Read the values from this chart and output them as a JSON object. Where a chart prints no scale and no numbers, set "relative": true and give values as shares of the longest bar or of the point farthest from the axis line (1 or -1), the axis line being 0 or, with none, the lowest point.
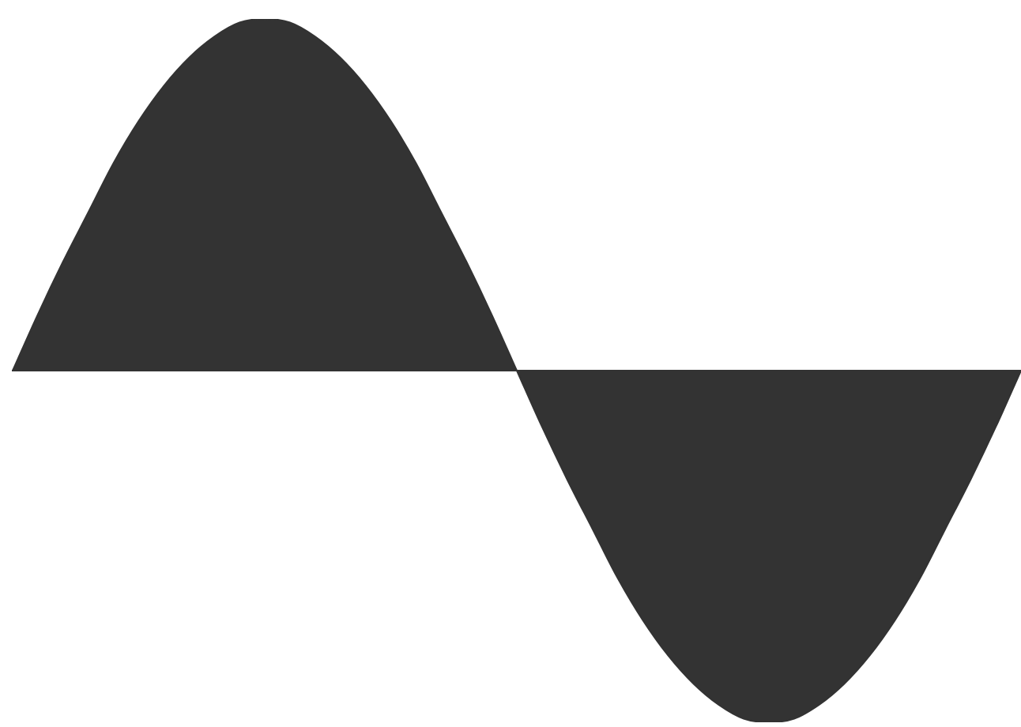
{
  "chart_data": {
    "type": "area",
    "relative": true,
    "categories": [
      null,
      null,
      null,
      null,
      null,
      null,
      null,
      null,
      null,
      null,
      null,
      null,
      null,
      null,
      null,
      null,
      null,
      null,
      null,
      null,
      null,
      null,
      null,
      null,
      null,
      null,
      null,
      null,
      null,
      null,
      null,
      null,
      null,
      null,
      null,
      null,
      null,
      null,
      null,
      null,
      null
    ],
    "values": [
      0,
      0.16,
      0.31,
      0.45,
      0.59,
      0.71,
      0.81,
      0.89,
      0.95,
      0.99,
      1,
      0.99,
      0.95,
      0.89,
      0.81,
      0.71,
      0.59,
      0.45,
      0.31,
      0.16,
      0,
      -0.16,
      -0.31,
      -0.45,
      -0.59,
      -0.71,
      -0.81,
      -0.89,
      -0.95,
      -0.99,
      -1,
      -0.99,
      -0.95,
      -0.89,
      -0.81,
      -0.71,
      -0.59,
      -0.45,
      -0.31,
      -0.16,
      0
    ],
    "color": "#333333"
  }
}
